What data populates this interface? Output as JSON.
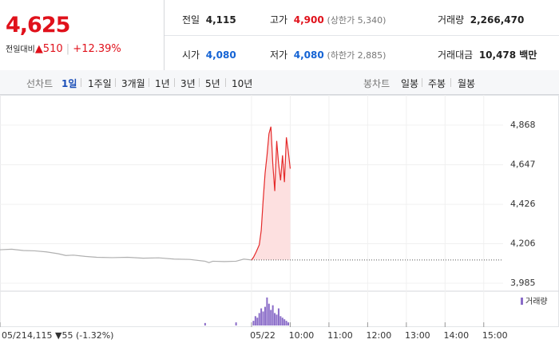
{
  "header": {
    "price": "4,625",
    "change_label": "전일대비",
    "change": "▲510",
    "change_pct": "+12.39%",
    "stats": [
      [
        {
          "label": "전일",
          "value": "4,115"
        },
        {
          "label": "고가",
          "value": "4,900",
          "note": "(상한가 5,340)"
        },
        {
          "label": "거래량",
          "value": "2,266,470"
        }
      ],
      [
        {
          "label": "시가",
          "value": "4,080"
        },
        {
          "label": "저가",
          "value": "4,080",
          "note": "(하한가 2,885)"
        },
        {
          "label": "거래대금",
          "value": "10,478 백만"
        }
      ]
    ]
  },
  "tabs": {
    "line_label": "선차트",
    "line": [
      "1일",
      "1주일",
      "3개월",
      "1년",
      "3년",
      "5년",
      "10년"
    ],
    "candle_label": "봉차트",
    "candle": [
      "일봉",
      "주봉",
      "월봉"
    ]
  },
  "chart_data": {
    "type": "line",
    "xlim": [
      2.5,
      15.5
    ],
    "ylim": [
      3954,
      4988
    ],
    "xticks": [
      {
        "value": 2.5,
        "label": "05/21"
      },
      {
        "value": 9,
        "label": "05/22"
      },
      {
        "value": 10,
        "label": "10:00"
      },
      {
        "value": 11,
        "label": "11:00"
      },
      {
        "value": 12,
        "label": "12:00"
      },
      {
        "value": 13,
        "label": "13:00"
      },
      {
        "value": 14,
        "label": "14:00"
      },
      {
        "value": 15,
        "label": "15:00"
      }
    ],
    "yticks": [
      {
        "value": 4868,
        "label": "4,868"
      },
      {
        "value": 4647,
        "label": "4,647"
      },
      {
        "value": 4426,
        "label": "4,426"
      },
      {
        "value": 4206,
        "label": "4,206"
      },
      {
        "value": 3985,
        "label": "3,985"
      }
    ],
    "grid": true,
    "reference": 4115,
    "prev_info": "4,115 ▼55 (-1.32%)",
    "series": [
      {
        "color": "#b0b0b0",
        "x": [
          2.5,
          2.8,
          3.1,
          3.4,
          3.7,
          4.0,
          4.2,
          4.4,
          4.7,
          5.0,
          5.4,
          5.8,
          6.2,
          6.6,
          7.0,
          7.4,
          7.8,
          7.9,
          8.0,
          8.3,
          8.6,
          8.8,
          9.0
        ],
        "values": [
          4172,
          4175,
          4168,
          4166,
          4160,
          4150,
          4140,
          4142,
          4135,
          4130,
          4128,
          4130,
          4125,
          4127,
          4120,
          4118,
          4108,
          4100,
          4108,
          4106,
          4108,
          4120,
          4115
        ]
      },
      {
        "color": "#e52a2a",
        "x": [
          9.0,
          9.05,
          9.12,
          9.2,
          9.25,
          9.3,
          9.35,
          9.4,
          9.45,
          9.5,
          9.55,
          9.6,
          9.65,
          9.7,
          9.75,
          9.8,
          9.85,
          9.9,
          9.95,
          10.0
        ],
        "values": [
          4115,
          4130,
          4160,
          4200,
          4280,
          4450,
          4600,
          4700,
          4820,
          4860,
          4650,
          4500,
          4780,
          4650,
          4560,
          4700,
          4550,
          4800,
          4720,
          4625
        ]
      }
    ],
    "volume": {
      "name": "거래량",
      "color": "#8a6cc8",
      "ylim": [
        0,
        100
      ],
      "x": [
        7.8,
        8.6,
        9.05,
        9.1,
        9.15,
        9.2,
        9.25,
        9.3,
        9.35,
        9.4,
        9.45,
        9.5,
        9.55,
        9.6,
        9.65,
        9.7,
        9.75,
        9.8,
        9.85,
        9.9,
        9.95
      ],
      "values": [
        8,
        10,
        15,
        30,
        25,
        40,
        55,
        45,
        60,
        90,
        70,
        50,
        65,
        40,
        35,
        55,
        30,
        25,
        20,
        15,
        10
      ]
    }
  }
}
